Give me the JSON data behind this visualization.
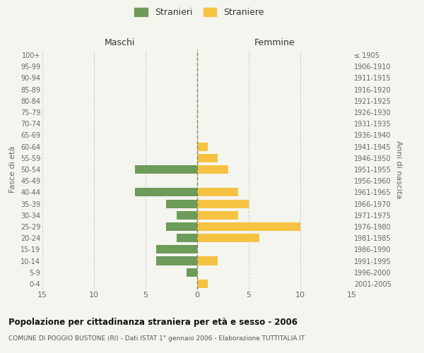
{
  "age_groups": [
    "100+",
    "95-99",
    "90-94",
    "85-89",
    "80-84",
    "75-79",
    "70-74",
    "65-69",
    "60-64",
    "55-59",
    "50-54",
    "45-49",
    "40-44",
    "35-39",
    "30-34",
    "25-29",
    "20-24",
    "15-19",
    "10-14",
    "5-9",
    "0-4"
  ],
  "birth_years": [
    "≤ 1905",
    "1906-1910",
    "1911-1915",
    "1916-1920",
    "1921-1925",
    "1926-1930",
    "1931-1935",
    "1936-1940",
    "1941-1945",
    "1946-1950",
    "1951-1955",
    "1956-1960",
    "1961-1965",
    "1966-1970",
    "1971-1975",
    "1976-1980",
    "1981-1985",
    "1986-1990",
    "1991-1995",
    "1996-2000",
    "2001-2005"
  ],
  "males": [
    0,
    0,
    0,
    0,
    0,
    0,
    0,
    0,
    0,
    0,
    6,
    0,
    6,
    3,
    2,
    3,
    2,
    4,
    4,
    1,
    0
  ],
  "females": [
    0,
    0,
    0,
    0,
    0,
    0,
    0,
    0,
    1,
    2,
    3,
    0,
    4,
    5,
    4,
    10,
    6,
    0,
    2,
    0,
    1
  ],
  "male_color": "#6d9b5a",
  "female_color": "#f5c242",
  "male_label": "Stranieri",
  "female_label": "Straniere",
  "xlabel_left": "Maschi",
  "xlabel_right": "Femmine",
  "ylabel_left": "Fasce di età",
  "ylabel_right": "Anni di nascita",
  "xlim": 15,
  "title": "Popolazione per cittadinanza straniera per età e sesso - 2006",
  "subtitle": "COMUNE DI POGGIO BUSTONE (RI) - Dati ISTAT 1° gennaio 2006 - Elaborazione TUTTITALIA.IT",
  "bg_color": "#f5f5f0",
  "grid_color": "#cccccc",
  "bar_height": 0.75
}
